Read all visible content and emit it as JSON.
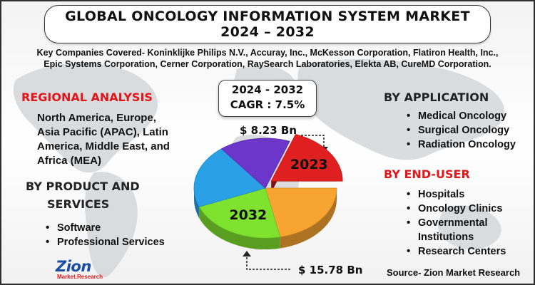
{
  "title": {
    "line1": "GLOBAL ONCOLOGY INFORMATION SYSTEM MARKET",
    "line2": "2024 – 2032"
  },
  "companies": {
    "line1": "Key Companies Covered- Koninklijke Philips N.V., Accuray, Inc., McKesson Corporation, Flatiron Health, Inc.,",
    "line2": "Epic Systems Corporation, Cerner Corporation, RaySearch Laboratories, Elekta AB, CureMD Corporation."
  },
  "regional": {
    "heading": "REGIONAL ANALYSIS",
    "lines": [
      "North America, Europe,",
      "Asia Pacific (APAC), Latin",
      "America, Middle East, and",
      "Africa (MEA)"
    ]
  },
  "product": {
    "heading_line1": "BY PRODUCT AND",
    "heading_line2": "SERVICES",
    "items": [
      "Software",
      "Professional Services"
    ]
  },
  "application": {
    "heading": "BY APPLICATION",
    "items": [
      "Medical Oncology",
      "Surgical Oncology",
      "Radiation Oncology"
    ]
  },
  "end_user": {
    "heading": "BY END-USER",
    "items": [
      "Hospitals",
      "Oncology Clinics",
      "Governmental Institutions",
      "Research Centers"
    ]
  },
  "cagr_box": {
    "period": "2024 - 2032",
    "cagr": "CAGR : 7.5%"
  },
  "source": "Source- Zion Market Research",
  "logo": {
    "name": "Zion",
    "sub": "Market.Research"
  },
  "chart_data": {
    "type": "pie",
    "title": "",
    "annotations": [
      {
        "year": "2023",
        "value_label": "$ 8.23 Bn",
        "value": 8.23,
        "unit": "USD Bn"
      },
      {
        "year": "2032",
        "value_label": "$ 15.78 Bn",
        "value": 15.78,
        "unit": "USD Bn"
      }
    ],
    "slices": [
      {
        "label": "2023",
        "color": "#e02020",
        "start_deg": -70,
        "end_deg": 0,
        "exploded": true
      },
      {
        "label": "",
        "color": "#f7a530",
        "start_deg": 0,
        "end_deg": 78,
        "exploded": false
      },
      {
        "label": "2032",
        "color": "#7fe22e",
        "start_deg": 78,
        "end_deg": 158,
        "exploded": false
      },
      {
        "label": "",
        "color": "#2aa1e6",
        "start_deg": 158,
        "end_deg": 232,
        "exploded": false
      },
      {
        "label": "",
        "color": "#6b36c9",
        "start_deg": 232,
        "end_deg": 290,
        "exploded": false
      }
    ],
    "colors": {
      "accent_red": "#e0161b",
      "brand_blue": "#1b4fa3"
    }
  }
}
